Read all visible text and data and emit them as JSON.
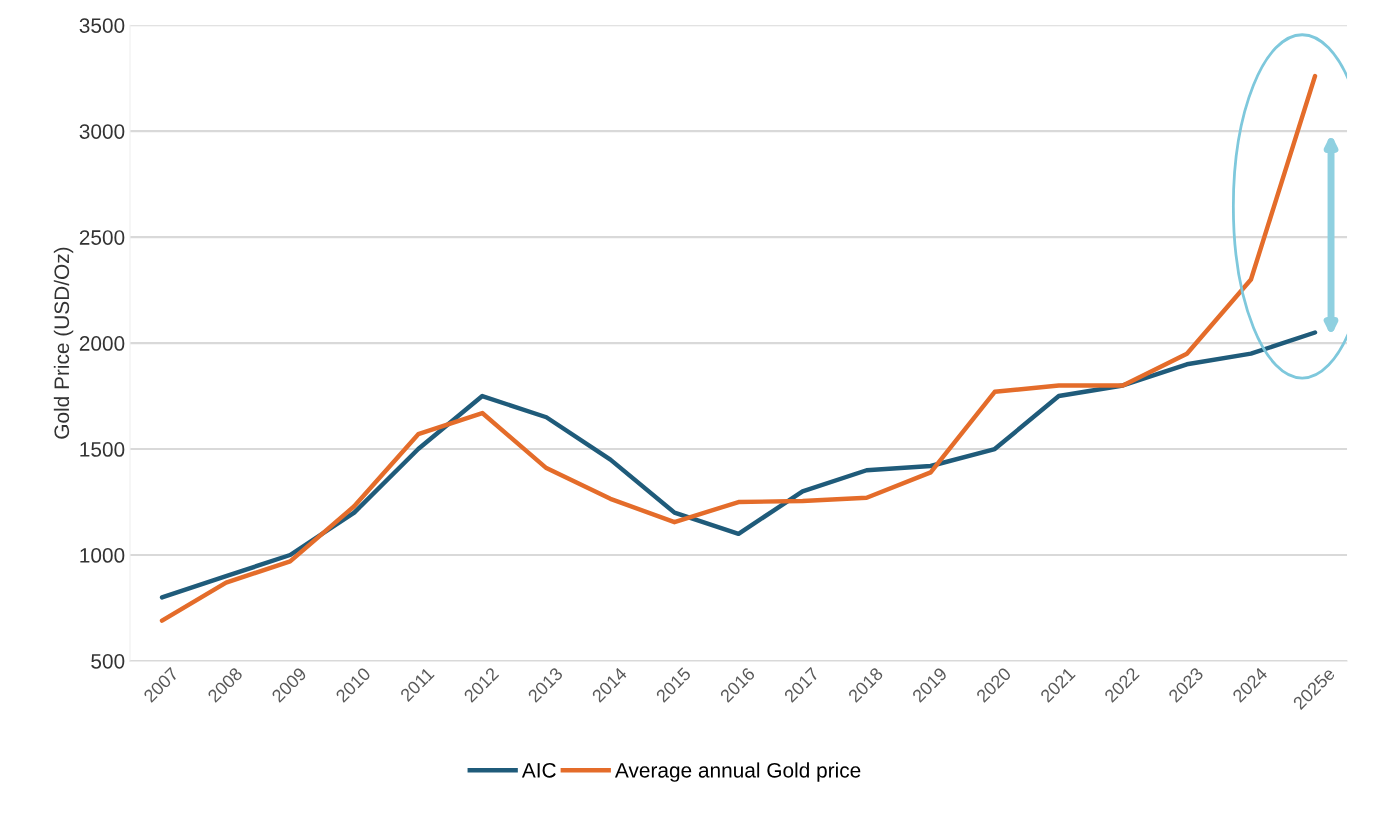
{
  "chart_data": {
    "type": "line",
    "ylabel": "Gold Price (USD/Oz)",
    "categories": [
      "2007",
      "2008",
      "2009",
      "2010",
      "2011",
      "2012",
      "2013",
      "2014",
      "2015",
      "2016",
      "2017",
      "2018",
      "2019",
      "2020",
      "2021",
      "2022",
      "2023",
      "2024",
      "2025e"
    ],
    "series": [
      {
        "name": "AIC",
        "color": "#1f5b7a",
        "values": [
          800,
          900,
          1000,
          1200,
          1500,
          1750,
          1650,
          1450,
          1200,
          1100,
          1300,
          1400,
          1420,
          1500,
          1750,
          1800,
          1900,
          1950,
          2050
        ]
      },
      {
        "name": "Average annual Gold price",
        "color": "#e46c2a",
        "values": [
          690,
          870,
          970,
          1230,
          1570,
          1670,
          1410,
          1265,
          1155,
          1250,
          1255,
          1270,
          1390,
          1770,
          1800,
          1800,
          1950,
          2300,
          3260
        ]
      }
    ],
    "ylim": [
      500,
      3500
    ],
    "yticks": [
      500,
      1000,
      1500,
      2000,
      2500,
      3000,
      3500
    ],
    "grid": "y",
    "legend": "bottom",
    "marker": "none",
    "line_style": "solid"
  }
}
